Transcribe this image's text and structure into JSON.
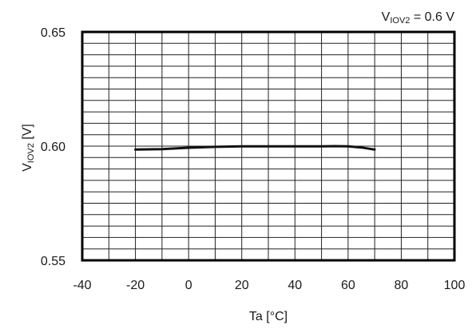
{
  "chart_data": {
    "type": "line",
    "title": "",
    "xlabel": "Ta [°C]",
    "ylabel_main": "V",
    "ylabel_sub": "IOV2",
    "ylabel_unit": " [V]",
    "xlim": [
      -40,
      100
    ],
    "ylim": [
      0.55,
      0.65
    ],
    "x_ticks": [
      -40,
      -20,
      0,
      20,
      40,
      60,
      80,
      100
    ],
    "x_tick_labels": [
      "-40",
      "-20",
      "0",
      "20",
      "40",
      "60",
      "80",
      "100"
    ],
    "y_ticks": [
      0.55,
      0.6,
      0.65
    ],
    "y_tick_labels": [
      "0.55",
      "0.60",
      "0.65"
    ],
    "x_grid_step": 10,
    "y_grid_step": 0.005,
    "grid": true,
    "annotation": {
      "main": "V",
      "sub": "IOV2",
      "rest": " = 0.6 V"
    },
    "series": [
      {
        "x": [
          -20,
          -10,
          0,
          10,
          20,
          30,
          40,
          50,
          55,
          60,
          65,
          70
        ],
        "y": [
          0.5985,
          0.5987,
          0.5993,
          0.5997,
          0.5999,
          0.5999,
          0.5999,
          0.5999,
          0.6,
          0.5999,
          0.5994,
          0.5985
        ]
      }
    ],
    "colors": {
      "line": "#111111",
      "grid": "#222222",
      "frame": "#000000"
    }
  }
}
